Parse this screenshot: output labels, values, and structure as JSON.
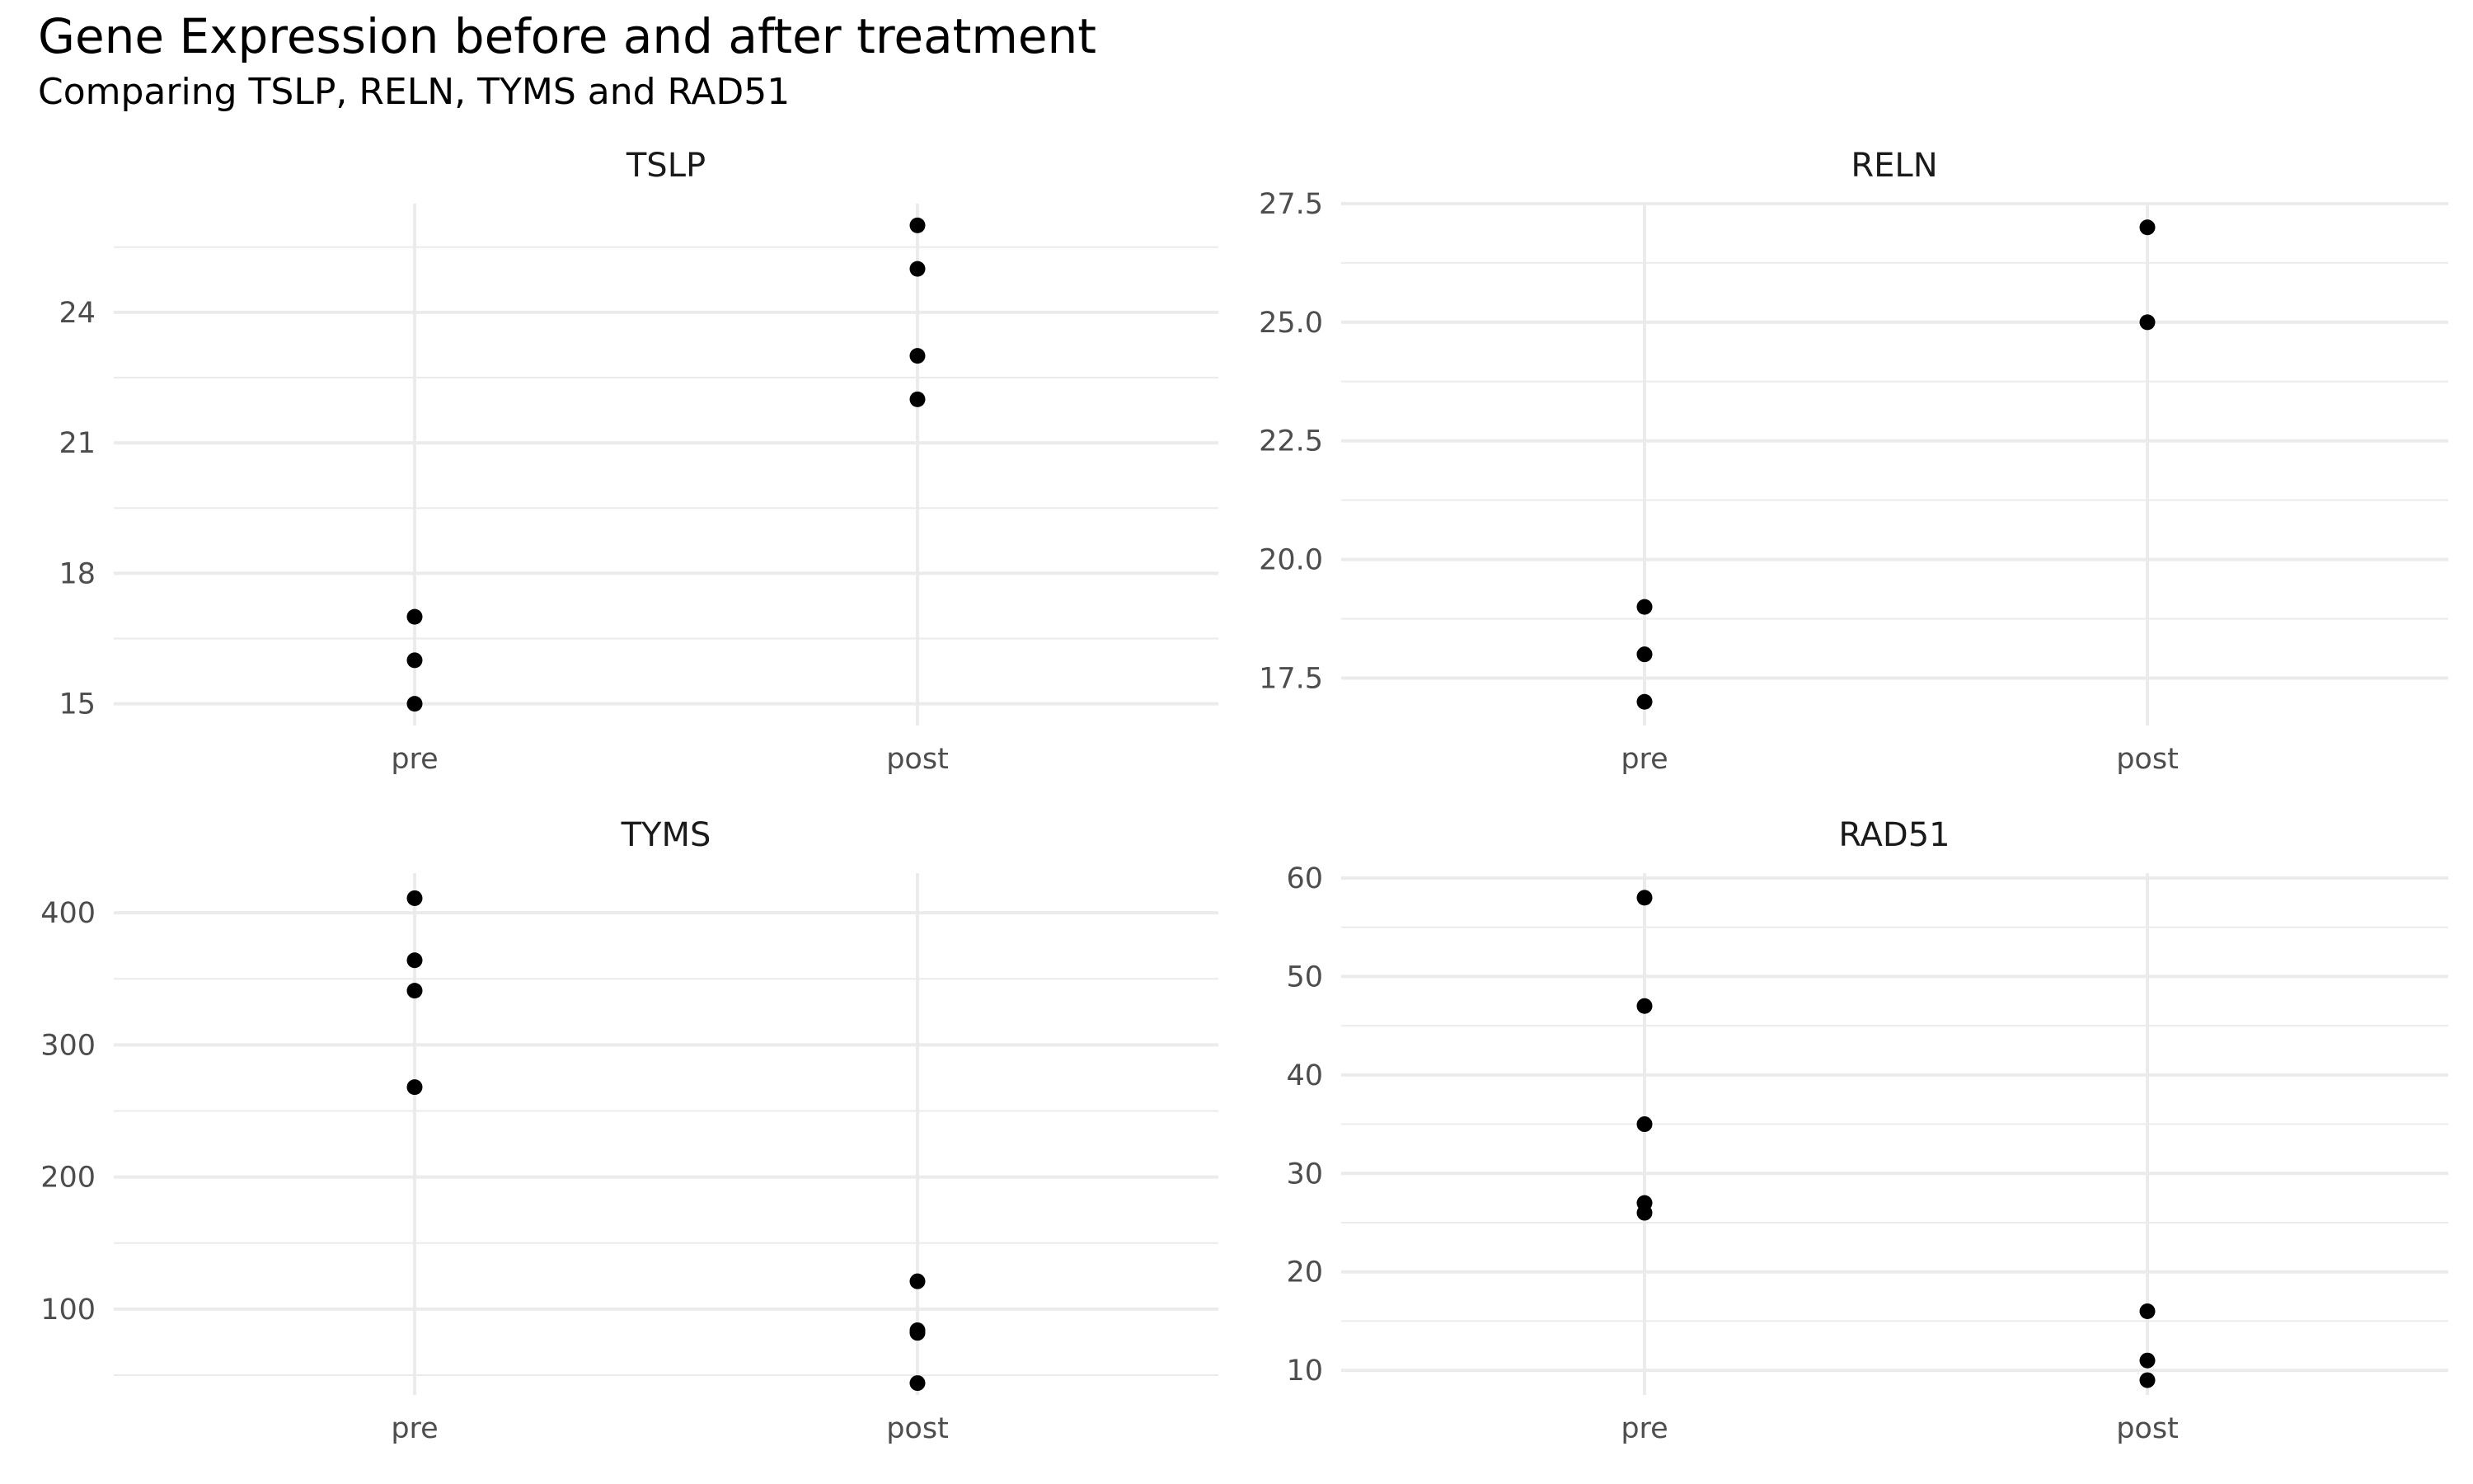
{
  "chart_data": {
    "type": "scatter",
    "layout": "facet_wrap 2x2",
    "title": "Gene Expression before and after treatment",
    "subtitle": "Comparing TSLP, RELN, TYMS and RAD51",
    "categories": [
      "pre",
      "post"
    ],
    "grid": true,
    "legend": "none",
    "panels": [
      {
        "name": "TSLP",
        "ylim": [
          14.5,
          26.5
        ],
        "yticks": [
          15,
          18,
          21,
          24
        ],
        "ytick_labels": [
          "15",
          "18",
          "21",
          "24"
        ],
        "points": [
          {
            "x": "pre",
            "y": 15
          },
          {
            "x": "pre",
            "y": 16
          },
          {
            "x": "pre",
            "y": 17
          },
          {
            "x": "post",
            "y": 22
          },
          {
            "x": "post",
            "y": 23
          },
          {
            "x": "post",
            "y": 25
          },
          {
            "x": "post",
            "y": 26
          }
        ]
      },
      {
        "name": "RELN",
        "ylim": [
          16.5,
          27.5
        ],
        "yticks": [
          17.5,
          20,
          22.5,
          25,
          27.5
        ],
        "ytick_labels": [
          "17.5",
          "20.0",
          "22.5",
          "25.0",
          "27.5"
        ],
        "points": [
          {
            "x": "pre",
            "y": 17
          },
          {
            "x": "pre",
            "y": 18
          },
          {
            "x": "pre",
            "y": 19
          },
          {
            "x": "post",
            "y": 25
          },
          {
            "x": "post",
            "y": 27
          }
        ]
      },
      {
        "name": "TYMS",
        "ylim": [
          35,
          430
        ],
        "yticks": [
          100,
          200,
          300,
          400
        ],
        "ytick_labels": [
          "100",
          "200",
          "300",
          "400"
        ],
        "points": [
          {
            "x": "pre",
            "y": 268
          },
          {
            "x": "pre",
            "y": 341
          },
          {
            "x": "pre",
            "y": 364
          },
          {
            "x": "pre",
            "y": 411
          },
          {
            "x": "post",
            "y": 44
          },
          {
            "x": "post",
            "y": 82
          },
          {
            "x": "post",
            "y": 84
          },
          {
            "x": "post",
            "y": 121
          }
        ]
      },
      {
        "name": "RAD51",
        "ylim": [
          7.5,
          60.5
        ],
        "yticks": [
          10,
          20,
          30,
          40,
          50,
          60
        ],
        "ytick_labels": [
          "10",
          "20",
          "30",
          "40",
          "50",
          "60"
        ],
        "points": [
          {
            "x": "pre",
            "y": 26
          },
          {
            "x": "pre",
            "y": 27
          },
          {
            "x": "pre",
            "y": 35
          },
          {
            "x": "pre",
            "y": 47
          },
          {
            "x": "pre",
            "y": 58
          },
          {
            "x": "post",
            "y": 9
          },
          {
            "x": "post",
            "y": 11
          },
          {
            "x": "post",
            "y": 16
          }
        ]
      }
    ]
  }
}
